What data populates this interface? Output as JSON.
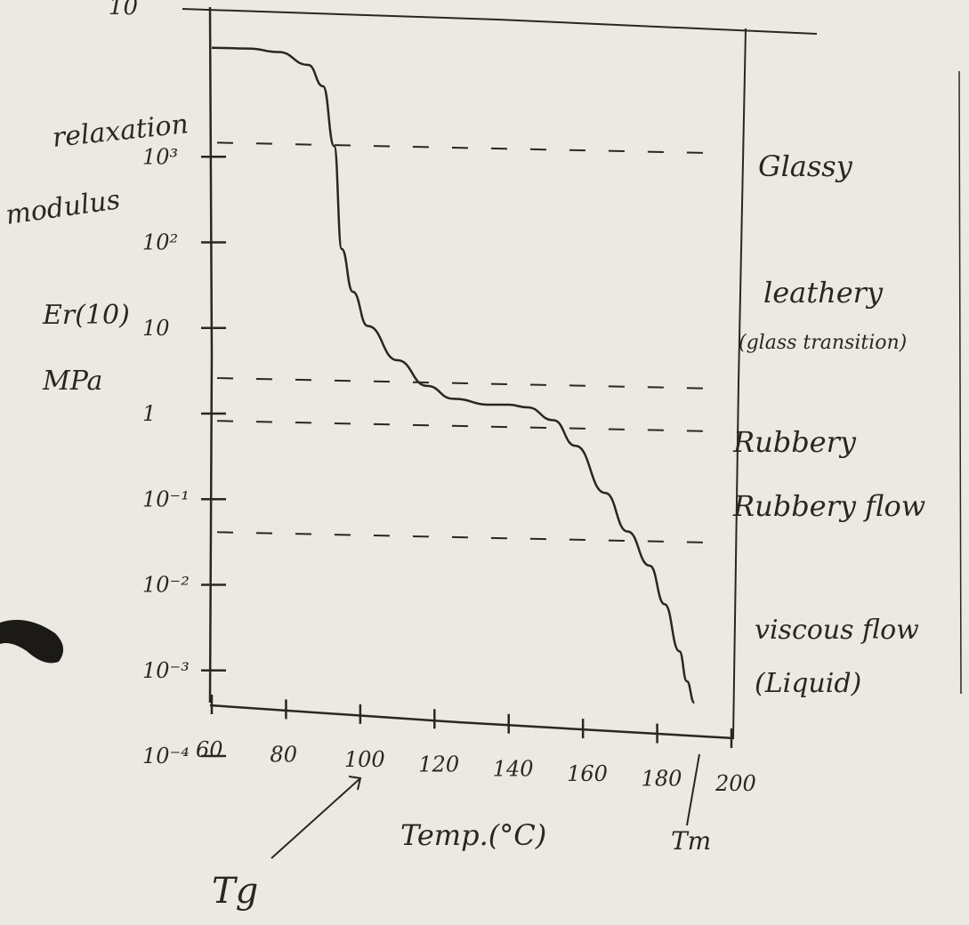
{
  "chart_data": {
    "type": "line",
    "ylabel_lines": [
      "relaxation",
      "modulus",
      "Er(10)",
      "MPa"
    ],
    "xlabel": "Temp.(°C)",
    "x_ticks": [
      "60",
      "80",
      "100",
      "120",
      "140",
      "160",
      "180",
      "200"
    ],
    "y_ticks": [
      "10³",
      "10²",
      "10",
      "1",
      "10⁻¹",
      "10⁻²",
      "10⁻³",
      "10⁻⁴"
    ],
    "y_tick_log": [
      3,
      2,
      1,
      0,
      -1,
      -2,
      -3,
      -4
    ],
    "top_label": "10",
    "xlim": [
      60,
      200
    ],
    "ylim_log10": [
      -4,
      4
    ],
    "y_scale": "log",
    "grid": false,
    "series": [
      {
        "x": [
          60,
          70,
          78,
          86,
          90,
          93,
          95,
          98,
          102,
          110,
          118,
          125,
          135,
          140,
          145,
          152,
          158,
          166,
          172,
          178,
          182,
          186,
          188,
          190
        ],
        "y_log10": [
          3.65,
          3.64,
          3.6,
          3.45,
          3.2,
          2.5,
          1.3,
          0.8,
          0.4,
          0.0,
          -0.3,
          -0.45,
          -0.52,
          -0.52,
          -0.55,
          -0.7,
          -1.0,
          -1.55,
          -2.0,
          -2.4,
          -2.85,
          -3.4,
          -3.75,
          -4.0
        ]
      }
    ],
    "regions": [
      {
        "label": "Glassy",
        "y_log10": 2.8
      },
      {
        "label": "leathery",
        "sub": "(glass transition)",
        "y_log10": 1.0
      },
      {
        "label": "Rubbery",
        "y_log10": -0.8
      },
      {
        "label": "Rubbery flow",
        "y_log10": -1.5
      },
      {
        "label": "viscous flow",
        "sub": "(Liquid)",
        "y_log10": -3.2
      }
    ],
    "annotations": [
      {
        "text": "Tg",
        "x": 100
      },
      {
        "text": "Tm",
        "x": 190
      }
    ],
    "reference_lines_log10": [
      2.5,
      -0.25,
      -0.75,
      -2.05
    ]
  }
}
